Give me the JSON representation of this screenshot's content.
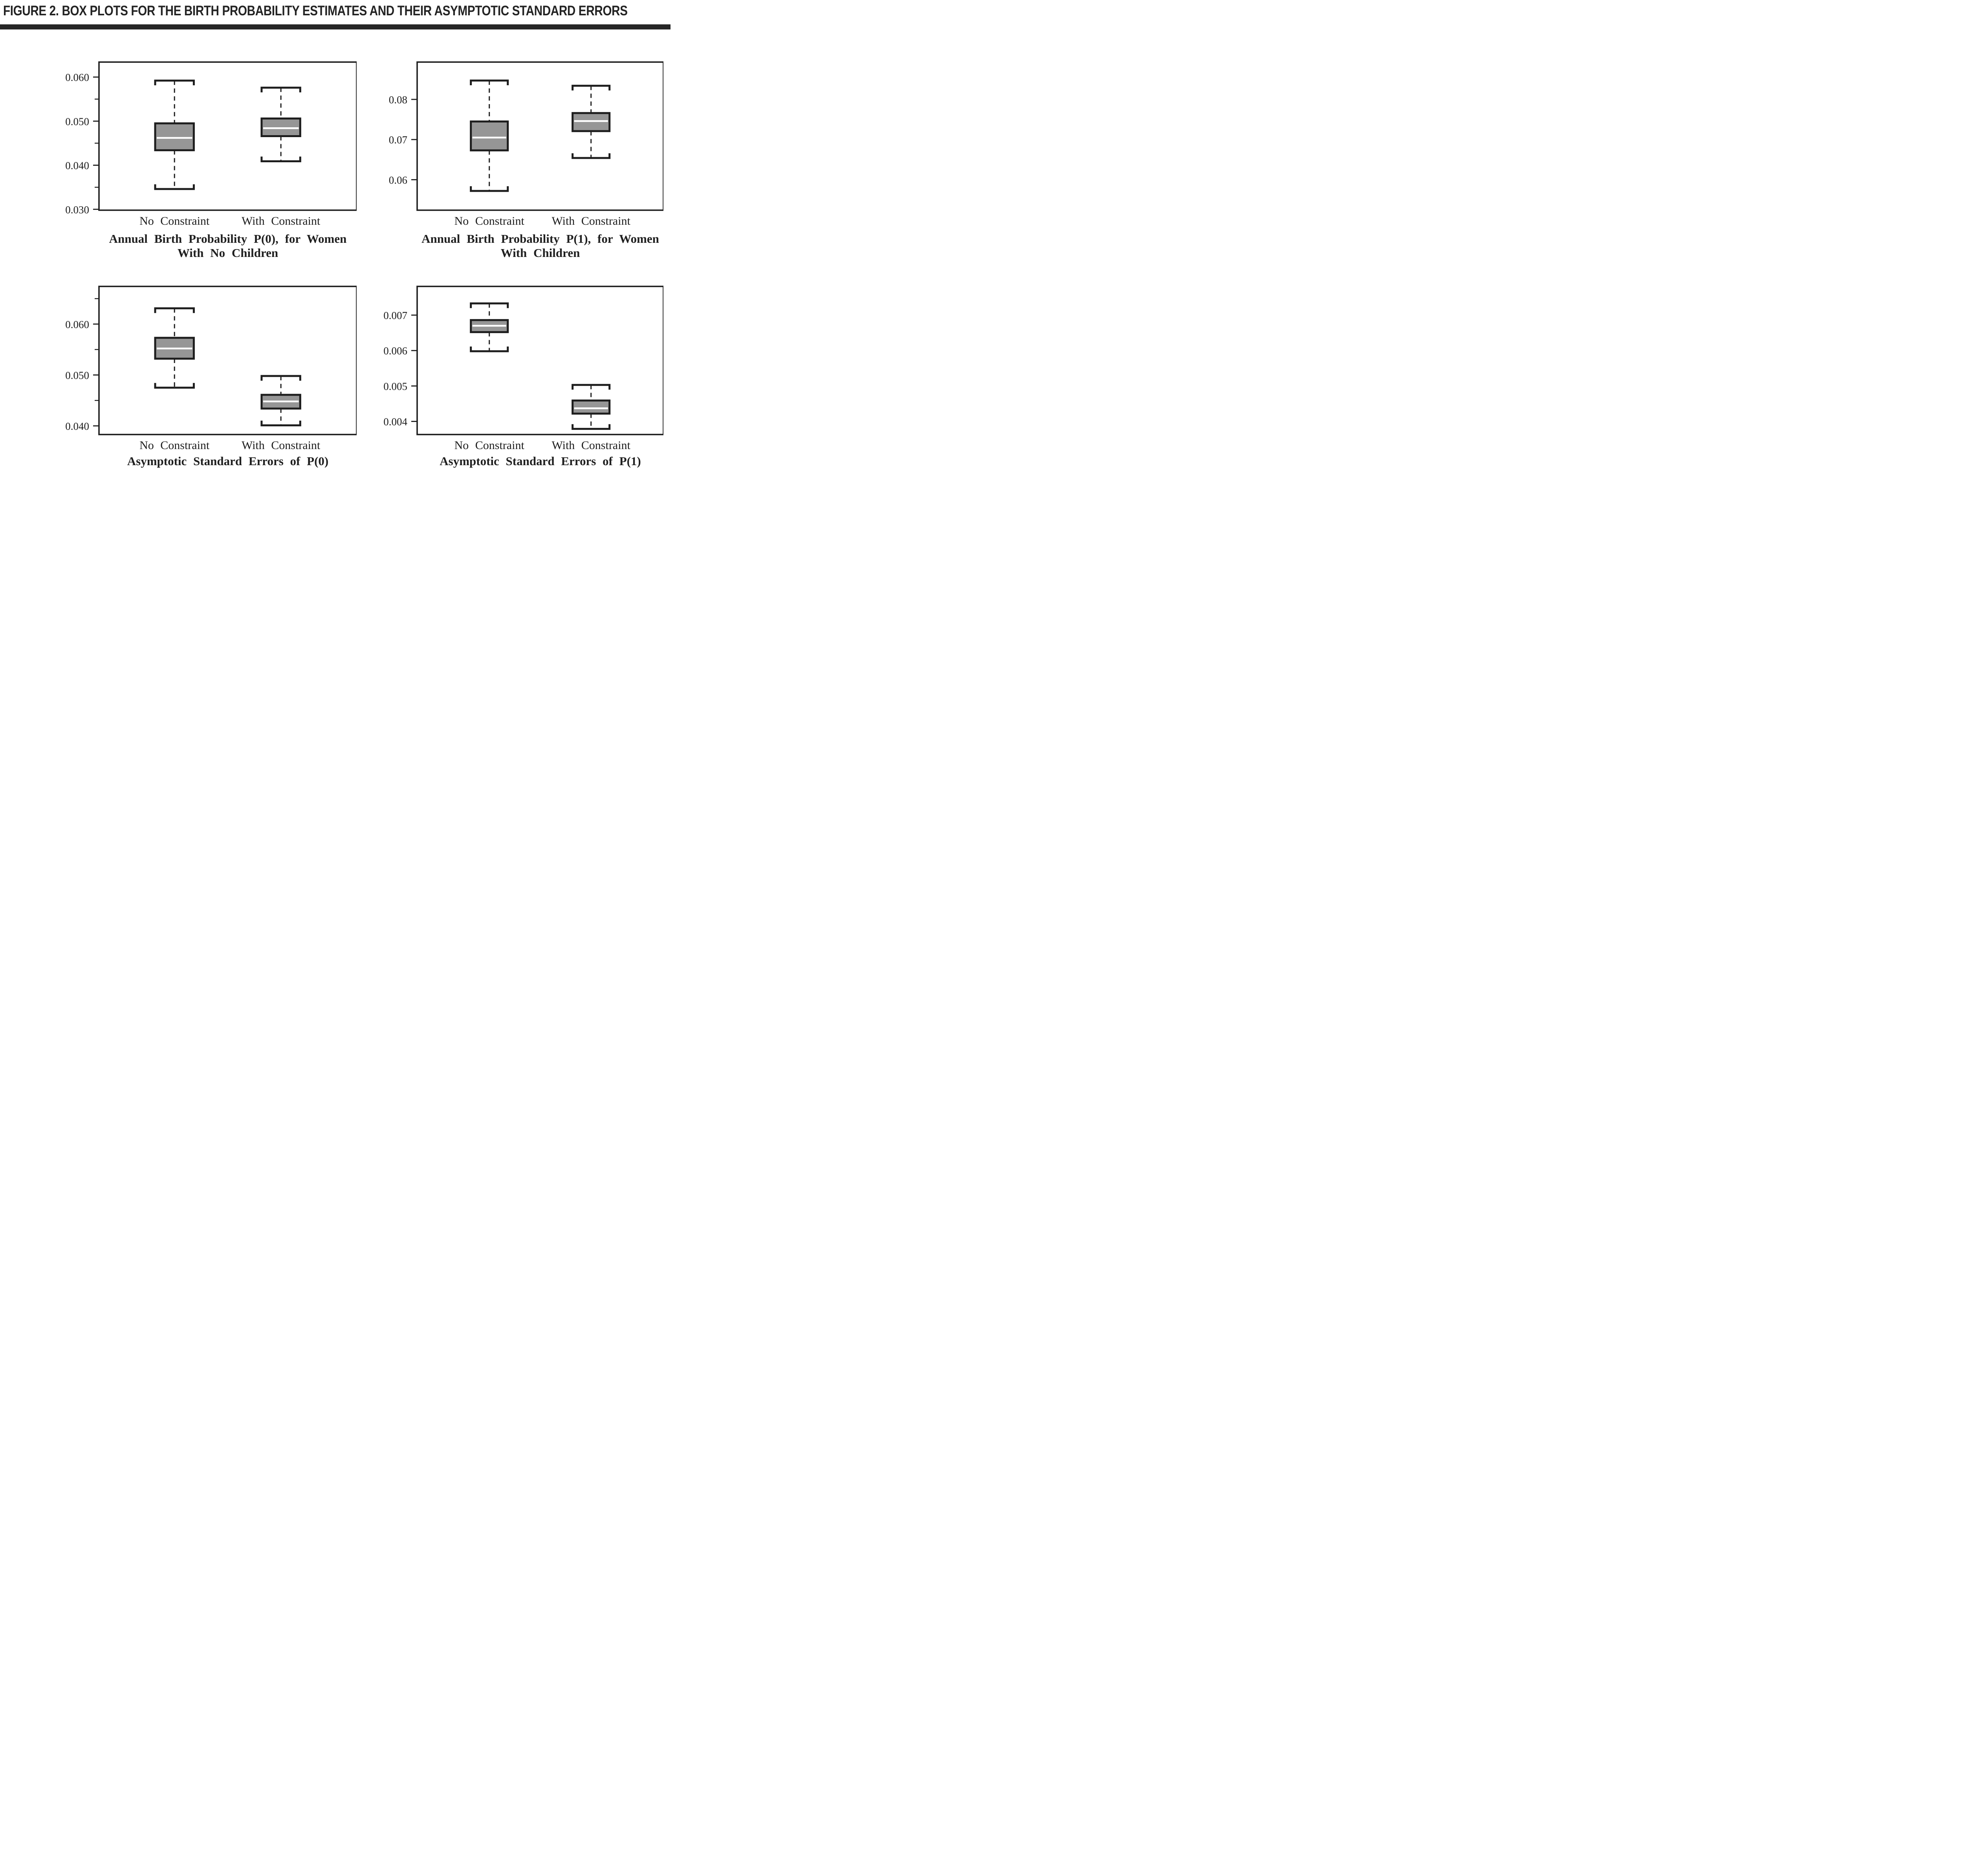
{
  "figure": {
    "title": "FIGURE 2. BOX PLOTS FOR THE BIRTH PROBABILITY ESTIMATES AND THEIR ASYMPTOTIC STANDARD ERRORS",
    "colors": {
      "ink": "#1d1d1d",
      "rule": "#262626",
      "box_fill": "#969696",
      "median": "#ffffff",
      "background": "#ffffff"
    }
  },
  "chart_data": [
    {
      "type": "box",
      "position": "top-left",
      "title": "Annual Birth Probability P(0), for Women With No Children",
      "title_lines": [
        "Annual Birth Probability P(0), for Women",
        "With No Children"
      ],
      "categories": [
        "No Constraint",
        "With Constraint"
      ],
      "ylim": [
        0.0298,
        0.0634
      ],
      "grid": false,
      "yticks": [
        {
          "value": 0.03,
          "label": "0.030"
        },
        {
          "value": 0.04,
          "label": "0.040"
        },
        {
          "value": 0.05,
          "label": "0.050"
        },
        {
          "value": 0.06,
          "label": "0.060"
        }
      ],
      "yticks_minor": [
        0.035,
        0.045,
        0.055
      ],
      "series": [
        {
          "name": "No Constraint",
          "whisker_low": 0.0346,
          "q1": 0.0434,
          "median": 0.0462,
          "q3": 0.0495,
          "whisker_high": 0.0592
        },
        {
          "name": "With Constraint",
          "whisker_low": 0.0409,
          "q1": 0.0466,
          "median": 0.0484,
          "q3": 0.0506,
          "whisker_high": 0.0576
        }
      ]
    },
    {
      "type": "box",
      "position": "top-right",
      "title": "Annual Birth Probability P(1), for Women With Children",
      "title_lines": [
        "Annual Birth Probability P(1), for Women",
        "With Children"
      ],
      "categories": [
        "No Constraint",
        "With Constraint"
      ],
      "ylim": [
        0.0524,
        0.0893
      ],
      "grid": false,
      "yticks": [
        {
          "value": 0.06,
          "label": "0.06"
        },
        {
          "value": 0.07,
          "label": "0.07"
        },
        {
          "value": 0.08,
          "label": "0.08"
        }
      ],
      "yticks_minor": [],
      "series": [
        {
          "name": "No Constraint",
          "whisker_low": 0.0572,
          "q1": 0.0673,
          "median": 0.0705,
          "q3": 0.0745,
          "whisker_high": 0.0847
        },
        {
          "name": "With Constraint",
          "whisker_low": 0.0654,
          "q1": 0.0721,
          "median": 0.0746,
          "q3": 0.0766,
          "whisker_high": 0.0834
        }
      ]
    },
    {
      "type": "box",
      "position": "bottom-left",
      "title": "Asymptotic Standard Errors of P(0)",
      "title_lines": [
        "Asymptotic Standard Errors of P(0)"
      ],
      "categories": [
        "No Constraint",
        "With Constraint"
      ],
      "ylim": [
        0.0383,
        0.0674
      ],
      "grid": false,
      "yticks": [
        {
          "value": 0.04,
          "label": "0.040"
        },
        {
          "value": 0.05,
          "label": "0.050"
        },
        {
          "value": 0.06,
          "label": "0.060"
        }
      ],
      "yticks_minor": [
        0.045,
        0.055,
        0.065
      ],
      "series": [
        {
          "name": "No Constraint",
          "whisker_low": 0.0475,
          "q1": 0.0532,
          "median": 0.0552,
          "q3": 0.0573,
          "whisker_high": 0.0631
        },
        {
          "name": "With Constraint",
          "whisker_low": 0.0401,
          "q1": 0.0434,
          "median": 0.0448,
          "q3": 0.0461,
          "whisker_high": 0.0498
        }
      ]
    },
    {
      "type": "box",
      "position": "bottom-right",
      "title": "Asymptotic Standard Errors of P(1)",
      "title_lines": [
        "Asymptotic Standard Errors of P(1)"
      ],
      "categories": [
        "No Constraint",
        "With Constraint"
      ],
      "ylim": [
        0.00363,
        0.00781
      ],
      "grid": false,
      "yticks": [
        {
          "value": 0.004,
          "label": "0.004"
        },
        {
          "value": 0.005,
          "label": "0.005"
        },
        {
          "value": 0.006,
          "label": "0.006"
        },
        {
          "value": 0.007,
          "label": "0.007"
        }
      ],
      "yticks_minor": [],
      "series": [
        {
          "name": "No Constraint",
          "whisker_low": 0.00598,
          "q1": 0.00652,
          "median": 0.0067,
          "q3": 0.00686,
          "whisker_high": 0.00733
        },
        {
          "name": "With Constraint",
          "whisker_low": 0.00379,
          "q1": 0.00422,
          "median": 0.00437,
          "q3": 0.00459,
          "whisker_high": 0.00503
        }
      ]
    }
  ]
}
